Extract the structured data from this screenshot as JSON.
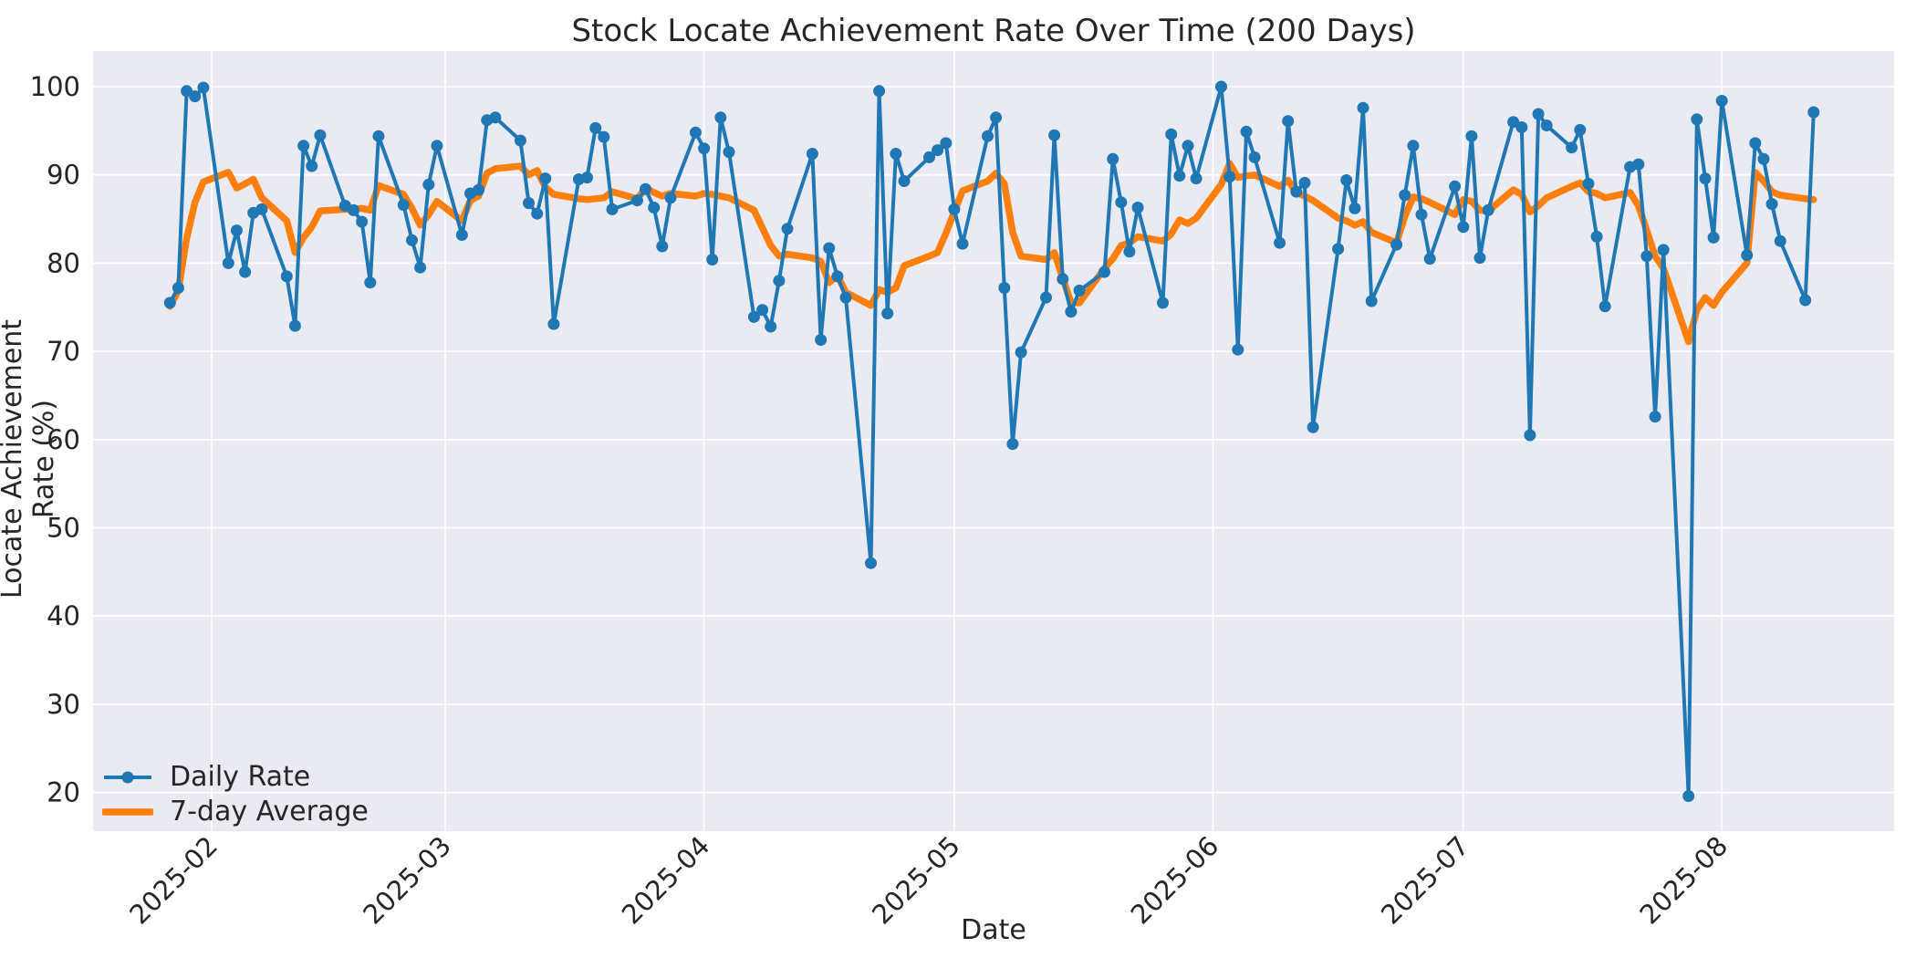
{
  "title": "Stock Locate Achievement Rate Over Time (200 Days)",
  "axes": {
    "xlabel": "Date",
    "ylabel": "Locate Achievement Rate (%)",
    "plot_background": "#eaeaf2",
    "grid_color": "#ffffff",
    "text_color": "#262626"
  },
  "legend": {
    "items": [
      {
        "label": "Daily Rate",
        "color": "#1f77b4",
        "style": "line-with-marker"
      },
      {
        "label": "7-day Average",
        "color": "#ff7f0e",
        "style": "thick-line"
      }
    ]
  },
  "chart_data": {
    "type": "line",
    "title": "Stock Locate Achievement Rate Over Time (200 Days)",
    "xlabel": "Date",
    "ylabel": "Locate Achievement Rate (%)",
    "ylim": [
      15.5,
      104.0
    ],
    "yticks": [
      20,
      30,
      40,
      50,
      60,
      70,
      80,
      90,
      100
    ],
    "xticks": [
      {
        "label": "2025-02",
        "date": "2025-02-01"
      },
      {
        "label": "2025-03",
        "date": "2025-03-01"
      },
      {
        "label": "2025-04",
        "date": "2025-04-01"
      },
      {
        "label": "2025-05",
        "date": "2025-05-01"
      },
      {
        "label": "2025-06",
        "date": "2025-06-01"
      },
      {
        "label": "2025-07",
        "date": "2025-07-01"
      },
      {
        "label": "2025-08",
        "date": "2025-08-01"
      }
    ],
    "grid": true,
    "legend_position": "lower-left",
    "x": [
      "2025-01-27",
      "2025-01-28",
      "2025-01-29",
      "2025-01-30",
      "2025-01-31",
      "2025-02-03",
      "2025-02-04",
      "2025-02-05",
      "2025-02-06",
      "2025-02-07",
      "2025-02-10",
      "2025-02-11",
      "2025-02-12",
      "2025-02-13",
      "2025-02-14",
      "2025-02-17",
      "2025-02-18",
      "2025-02-19",
      "2025-02-20",
      "2025-02-21",
      "2025-02-24",
      "2025-02-25",
      "2025-02-26",
      "2025-02-27",
      "2025-02-28",
      "2025-03-03",
      "2025-03-04",
      "2025-03-05",
      "2025-03-06",
      "2025-03-07",
      "2025-03-10",
      "2025-03-11",
      "2025-03-12",
      "2025-03-13",
      "2025-03-14",
      "2025-03-17",
      "2025-03-18",
      "2025-03-19",
      "2025-03-20",
      "2025-03-21",
      "2025-03-24",
      "2025-03-25",
      "2025-03-26",
      "2025-03-27",
      "2025-03-28",
      "2025-03-31",
      "2025-04-01",
      "2025-04-02",
      "2025-04-03",
      "2025-04-04",
      "2025-04-07",
      "2025-04-08",
      "2025-04-09",
      "2025-04-10",
      "2025-04-11",
      "2025-04-14",
      "2025-04-15",
      "2025-04-16",
      "2025-04-17",
      "2025-04-18",
      "2025-04-21",
      "2025-04-22",
      "2025-04-23",
      "2025-04-24",
      "2025-04-25",
      "2025-04-28",
      "2025-04-29",
      "2025-04-30",
      "2025-05-01",
      "2025-05-02",
      "2025-05-05",
      "2025-05-06",
      "2025-05-07",
      "2025-05-08",
      "2025-05-09",
      "2025-05-12",
      "2025-05-13",
      "2025-05-14",
      "2025-05-15",
      "2025-05-16",
      "2025-05-19",
      "2025-05-20",
      "2025-05-21",
      "2025-05-22",
      "2025-05-23",
      "2025-05-26",
      "2025-05-27",
      "2025-05-28",
      "2025-05-29",
      "2025-05-30",
      "2025-06-02",
      "2025-06-03",
      "2025-06-04",
      "2025-06-05",
      "2025-06-06",
      "2025-06-09",
      "2025-06-10",
      "2025-06-11",
      "2025-06-12",
      "2025-06-13",
      "2025-06-16",
      "2025-06-17",
      "2025-06-18",
      "2025-06-19",
      "2025-06-20",
      "2025-06-23",
      "2025-06-24",
      "2025-06-25",
      "2025-06-26",
      "2025-06-27",
      "2025-06-30",
      "2025-07-01",
      "2025-07-02",
      "2025-07-03",
      "2025-07-04",
      "2025-07-07",
      "2025-07-08",
      "2025-07-09",
      "2025-07-10",
      "2025-07-11",
      "2025-07-14",
      "2025-07-15",
      "2025-07-16",
      "2025-07-17",
      "2025-07-18",
      "2025-07-21",
      "2025-07-22",
      "2025-07-23",
      "2025-07-24",
      "2025-07-25",
      "2025-07-28",
      "2025-07-29",
      "2025-07-30",
      "2025-07-31",
      "2025-08-01",
      "2025-08-04",
      "2025-08-05",
      "2025-08-06",
      "2025-08-07",
      "2025-08-08",
      "2025-08-11",
      "2025-08-12"
    ],
    "series": [
      {
        "name": "Daily Rate",
        "color": "#1f77b4",
        "marker": "circle",
        "values": [
          75.5,
          77.2,
          99.5,
          98.9,
          99.9,
          80.0,
          83.7,
          79.0,
          85.7,
          86.1,
          78.5,
          72.9,
          93.3,
          91.0,
          94.5,
          86.5,
          86.0,
          84.7,
          77.8,
          94.4,
          86.6,
          82.6,
          79.5,
          88.9,
          93.3,
          83.2,
          87.9,
          88.3,
          96.2,
          96.5,
          93.9,
          86.8,
          85.6,
          89.6,
          73.1,
          89.5,
          89.7,
          95.3,
          94.3,
          86.1,
          87.1,
          88.4,
          86.3,
          81.9,
          87.4,
          94.8,
          93.0,
          80.4,
          96.5,
          92.6,
          73.9,
          74.7,
          72.8,
          78.0,
          83.9,
          92.4,
          71.3,
          81.7,
          78.5,
          76.1,
          46.0,
          99.5,
          74.3,
          92.4,
          89.3,
          92.0,
          92.8,
          93.6,
          86.1,
          82.2,
          94.4,
          96.5,
          77.2,
          59.5,
          69.9,
          76.1,
          94.5,
          78.2,
          74.5,
          76.9,
          79.0,
          91.8,
          86.9,
          81.3,
          86.3,
          75.5,
          94.6,
          89.9,
          93.3,
          89.6,
          100.0,
          89.8,
          70.2,
          94.9,
          92.0,
          82.3,
          96.1,
          88.1,
          89.1,
          61.4,
          81.6,
          89.4,
          86.2,
          97.6,
          75.7,
          82.1,
          87.7,
          93.3,
          85.5,
          80.5,
          88.7,
          84.1,
          94.4,
          80.6,
          86.0,
          96.0,
          95.4,
          60.5,
          96.9,
          95.6,
          93.1,
          95.1,
          89.0,
          83.0,
          75.1,
          90.9,
          91.2,
          80.8,
          62.6,
          81.5,
          19.6,
          96.3,
          89.6,
          82.9,
          98.4,
          80.9,
          93.6,
          91.8,
          86.7,
          82.5,
          75.8,
          97.1
        ]
      },
      {
        "name": "7-day Average",
        "color": "#ff7f0e",
        "marker": "none",
        "values": [
          75.1,
          76.9,
          82.8,
          86.9,
          89.2,
          90.3,
          88.5,
          89.0,
          89.5,
          87.4,
          84.8,
          81.2,
          82.9,
          84.1,
          85.9,
          86.1,
          86.1,
          86.2,
          86.0,
          88.8,
          87.8,
          86.2,
          84.3,
          85.5,
          87.0,
          84.8,
          87.1,
          87.6,
          90.2,
          90.7,
          91.0,
          90.0,
          90.5,
          88.6,
          87.8,
          87.3,
          87.2,
          87.3,
          87.4,
          88.1,
          87.3,
          88.5,
          88.0,
          87.6,
          87.9,
          87.6,
          87.9,
          87.8,
          87.6,
          87.4,
          86.0,
          84.0,
          82.0,
          80.8,
          81.0,
          80.6,
          80.2,
          77.8,
          78.6,
          76.7,
          75.2,
          77.0,
          76.7,
          77.2,
          79.7,
          80.8,
          81.2,
          83.4,
          85.8,
          88.2,
          89.3,
          90.2,
          89.0,
          83.5,
          80.8,
          80.4,
          81.2,
          78.3,
          75.5,
          75.5,
          79.4,
          80.5,
          82.0,
          82.3,
          83.0,
          82.5,
          83.3,
          84.9,
          84.5,
          85.1,
          88.9,
          91.3,
          89.7,
          89.9,
          90.0,
          88.7,
          89.4,
          88.0,
          87.6,
          87.1,
          85.1,
          84.8,
          84.3,
          84.7,
          83.5,
          82.3,
          85.3,
          87.5,
          87.3,
          86.9,
          85.5,
          87.2,
          87.0,
          86.0,
          85.9,
          88.3,
          87.8,
          85.8,
          86.5,
          87.4,
          88.7,
          89.1,
          88.1,
          87.9,
          87.4,
          88.0,
          86.5,
          83.7,
          80.8,
          79.4,
          71.1,
          74.7,
          76.1,
          75.2,
          76.7,
          80.0,
          90.3,
          89.3,
          88.1,
          87.7,
          87.3,
          87.2
        ]
      }
    ]
  },
  "layout_values": {
    "figure_width": 2100,
    "figure_height": 1050
  }
}
